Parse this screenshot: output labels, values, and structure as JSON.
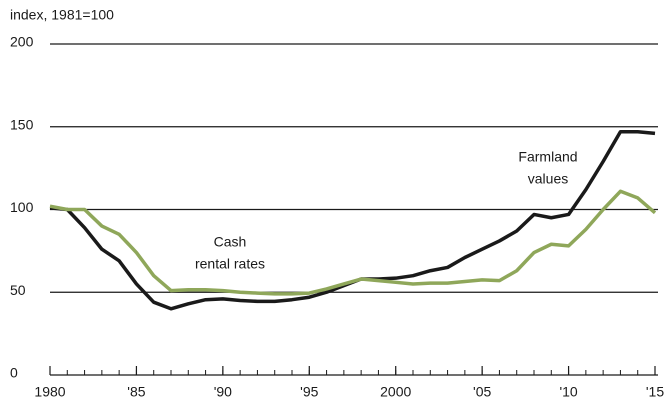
{
  "chart_data": {
    "type": "line",
    "y_label": "index, 1981=100",
    "x": [
      1980,
      1981,
      1982,
      1983,
      1984,
      1985,
      1986,
      1987,
      1988,
      1989,
      1990,
      1991,
      1992,
      1993,
      1994,
      1995,
      1996,
      1997,
      1998,
      1999,
      2000,
      2001,
      2002,
      2003,
      2004,
      2005,
      2006,
      2007,
      2008,
      2009,
      2010,
      2011,
      2012,
      2013,
      2014,
      2015
    ],
    "series": [
      {
        "name": "Farmland values",
        "name_lines": [
          "Farmland",
          "values"
        ],
        "color": "#1a1a1a",
        "values": [
          101,
          100,
          89,
          76,
          69,
          55,
          44,
          40,
          43,
          45.5,
          46,
          45,
          44.5,
          44.5,
          45.5,
          47,
          50,
          54,
          58,
          58,
          58.5,
          60,
          63,
          65,
          71,
          76,
          81,
          87,
          97,
          95,
          97,
          112,
          129,
          147,
          147,
          146
        ]
      },
      {
        "name": "Cash rental rates",
        "name_lines": [
          "Cash",
          "rental rates"
        ],
        "color": "#8fa75a",
        "values": [
          102,
          100,
          100,
          90,
          85,
          74,
          60,
          51,
          51.5,
          51.5,
          51,
          50,
          49.5,
          49,
          49,
          49.5,
          52,
          55,
          58,
          57,
          56,
          55,
          55.5,
          55.5,
          56.5,
          57.5,
          57,
          63,
          74,
          79,
          78,
          88,
          100,
          111,
          107,
          98
        ]
      }
    ],
    "xlim": [
      1980,
      2015
    ],
    "xticks": [
      1980,
      {
        "value": 1985,
        "label": "'85"
      },
      {
        "value": 1990,
        "label": "'90"
      },
      {
        "value": 1995,
        "label": "'95"
      },
      2000,
      {
        "value": 2005,
        "label": "'05"
      },
      {
        "value": 2010,
        "label": "'10"
      },
      {
        "value": 2015,
        "label": "'15"
      }
    ],
    "ylim": [
      0,
      200
    ],
    "yticks": [
      0,
      50,
      100,
      150,
      200
    ],
    "grid": true
  }
}
